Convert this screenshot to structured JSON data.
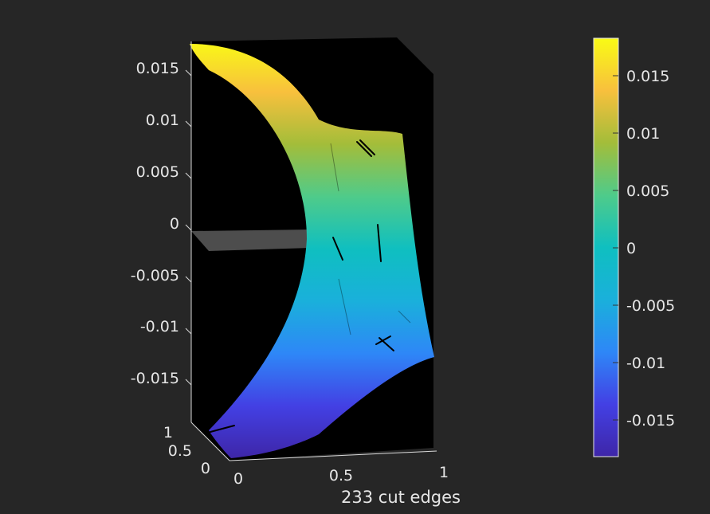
{
  "chart_data": {
    "type": "scatter",
    "title": "",
    "xlabel": "233 cut edges",
    "ylabel": "",
    "zlabel": "",
    "x_ticks": [
      "0",
      "0.5",
      "1"
    ],
    "y_ticks": [
      "0",
      "0.5",
      "1"
    ],
    "z_ticks": [
      "-0.015",
      "-0.01",
      "-0.005",
      "0",
      "0.005",
      "0.01",
      "0.015"
    ],
    "colorbar": {
      "ticks": [
        "-0.015",
        "-0.01",
        "-0.005",
        "0",
        "0.005",
        "0.01",
        "0.015"
      ],
      "range": [
        -0.0183,
        0.0183
      ],
      "colormap": "parula",
      "stops": [
        "#3e26a8",
        "#4340e4",
        "#2e87f7",
        "#1ab0db",
        "#0fbfc0",
        "#4fcb8a",
        "#a3bd3a",
        "#f8c03d",
        "#f9fb15"
      ]
    },
    "zlim": [
      -0.0183,
      0.0183
    ],
    "background_color": "#000000",
    "figure_color": "#262626",
    "surface": "warped sheet colored by z (height)",
    "cut_plane_z": 0
  }
}
